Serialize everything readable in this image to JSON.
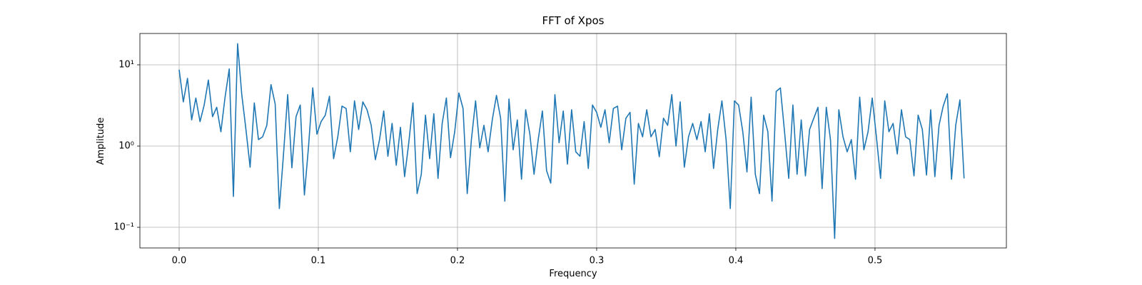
{
  "chart_data": {
    "type": "line",
    "title": "FFT of Xpos",
    "xlabel": "Frequency",
    "ylabel": "Amplitude",
    "x": [
      0,
      0.003,
      0.006,
      0.009,
      0.012,
      0.015,
      0.018,
      0.021,
      0.024,
      0.027,
      0.03,
      0.033,
      0.036,
      0.039,
      0.042,
      0.045,
      0.048,
      0.051,
      0.054,
      0.057,
      0.06,
      0.063,
      0.066,
      0.069,
      0.072,
      0.075,
      0.078,
      0.081,
      0.084,
      0.087,
      0.09,
      0.093,
      0.096,
      0.099,
      0.102,
      0.105,
      0.108,
      0.111,
      0.114,
      0.117,
      0.12,
      0.123,
      0.126,
      0.129,
      0.132,
      0.135,
      0.138,
      0.141,
      0.144,
      0.147,
      0.15,
      0.153,
      0.156,
      0.159,
      0.162,
      0.165,
      0.168,
      0.171,
      0.174,
      0.177,
      0.18,
      0.183,
      0.186,
      0.189,
      0.192,
      0.195,
      0.198,
      0.201,
      0.204,
      0.207,
      0.21,
      0.213,
      0.216,
      0.219,
      0.222,
      0.225,
      0.228,
      0.231,
      0.234,
      0.237,
      0.24,
      0.243,
      0.246,
      0.249,
      0.252,
      0.255,
      0.258,
      0.261,
      0.264,
      0.267,
      0.27,
      0.273,
      0.276,
      0.279,
      0.282,
      0.285,
      0.288,
      0.291,
      0.294,
      0.297,
      0.3,
      0.303,
      0.306,
      0.309,
      0.312,
      0.315,
      0.318,
      0.321,
      0.324,
      0.327,
      0.33,
      0.333,
      0.336,
      0.339,
      0.342,
      0.345,
      0.348,
      0.351,
      0.354,
      0.357,
      0.36,
      0.363,
      0.366,
      0.369,
      0.372,
      0.375,
      0.378,
      0.381,
      0.384,
      0.387,
      0.39,
      0.393,
      0.396,
      0.399,
      0.402,
      0.405,
      0.408,
      0.411,
      0.414,
      0.417,
      0.42,
      0.423,
      0.426,
      0.429,
      0.432,
      0.435,
      0.438,
      0.441,
      0.444,
      0.447,
      0.45,
      0.453,
      0.456,
      0.459,
      0.462,
      0.465,
      0.468,
      0.471,
      0.474,
      0.477,
      0.48,
      0.483,
      0.486,
      0.489,
      0.492,
      0.495,
      0.498,
      0.501,
      0.504,
      0.507,
      0.51,
      0.513,
      0.516,
      0.519,
      0.522,
      0.525,
      0.528,
      0.531,
      0.534,
      0.537,
      0.54,
      0.543,
      0.546,
      0.549,
      0.552,
      0.555,
      0.558,
      0.561,
      0.564
    ],
    "series": [
      {
        "name": "Xpos",
        "color": "#1f77b4",
        "values": [
          8.7,
          3.5,
          6.8,
          2.1,
          3.9,
          2.0,
          3.2,
          6.5,
          2.3,
          3.0,
          1.5,
          4.0,
          8.9,
          0.24,
          18.2,
          4.3,
          1.6,
          0.55,
          3.4,
          1.2,
          1.3,
          1.8,
          5.7,
          3.3,
          0.17,
          0.8,
          4.3,
          0.54,
          2.3,
          3.2,
          0.25,
          1.0,
          5.2,
          1.4,
          2.0,
          2.4,
          4.1,
          0.7,
          1.3,
          3.1,
          2.9,
          0.85,
          3.6,
          1.6,
          3.5,
          2.8,
          1.8,
          0.68,
          1.2,
          2.7,
          0.75,
          1.9,
          0.58,
          1.7,
          0.42,
          1.1,
          3.4,
          0.26,
          0.45,
          2.4,
          0.7,
          2.5,
          0.4,
          1.9,
          3.9,
          0.72,
          1.5,
          4.5,
          2.9,
          0.26,
          1.2,
          3.6,
          0.95,
          1.8,
          0.85,
          2.1,
          4.2,
          2.2,
          0.21,
          3.8,
          0.9,
          2.1,
          0.39,
          2.8,
          1.4,
          0.45,
          1.2,
          2.7,
          0.5,
          0.35,
          4.3,
          1.1,
          2.7,
          0.6,
          2.8,
          0.85,
          0.75,
          2.0,
          0.53,
          3.2,
          2.6,
          1.7,
          2.8,
          1.1,
          2.9,
          3.1,
          0.9,
          2.2,
          2.6,
          0.34,
          1.9,
          1.3,
          2.8,
          1.3,
          1.6,
          0.74,
          2.2,
          1.8,
          4.3,
          1.0,
          3.5,
          0.55,
          1.3,
          1.9,
          1.2,
          2.0,
          0.85,
          2.5,
          0.53,
          1.6,
          3.6,
          1.2,
          0.17,
          3.6,
          3.2,
          1.5,
          0.48,
          4.0,
          0.45,
          0.26,
          2.4,
          1.5,
          0.21,
          4.7,
          5.2,
          1.5,
          0.4,
          3.2,
          0.45,
          2.1,
          0.43,
          1.6,
          2.2,
          3.0,
          0.3,
          3.0,
          1.2,
          0.073,
          2.8,
          1.3,
          0.85,
          1.2,
          0.39,
          4.0,
          0.9,
          1.5,
          3.9,
          1.3,
          0.4,
          3.6,
          1.5,
          1.9,
          0.8,
          2.8,
          1.3,
          1.2,
          0.43,
          2.4,
          1.6,
          0.44,
          2.8,
          0.42,
          1.8,
          3.1,
          4.4,
          0.39,
          1.8,
          3.7,
          0.4
        ]
      }
    ],
    "xlim": [
      -0.0282,
      0.5944
    ],
    "xticks": [
      {
        "value": 0,
        "label": "0.0"
      },
      0.1,
      0.2,
      0.3,
      0.4,
      0.5
    ],
    "ylim": [
      0.0557,
      24.3
    ],
    "ylog": true,
    "yticks": [
      {
        "value": 0.1,
        "label": "10⁻¹"
      },
      {
        "value": 1,
        "label": "10⁰"
      },
      {
        "value": 10,
        "label": "10¹"
      }
    ],
    "grid": true
  }
}
